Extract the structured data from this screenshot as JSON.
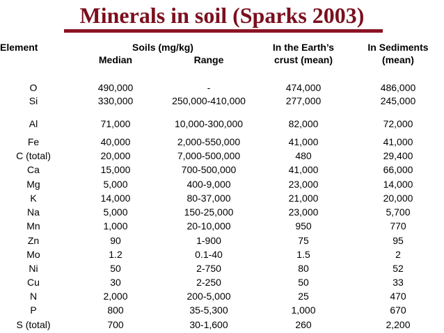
{
  "title": "Minerals in soil (Sparks 2003)",
  "colors": {
    "title": "#7b0f1e",
    "rule": "#8a1424",
    "text": "#000000",
    "background": "#ffffff"
  },
  "headers": {
    "element": "Element",
    "soils": "Soils (mg/kg)",
    "median": "Median",
    "range": "Range",
    "crust_line1": "In the Earth’s",
    "crust_line2": "crust (mean)",
    "sediments_line1": "In Sediments",
    "sediments_line2": "(mean)"
  },
  "rows": [
    {
      "element": "O",
      "median": "490,000",
      "range": "-",
      "crust": "474,000",
      "sediments": "486,000"
    },
    {
      "element": "Si",
      "median": "330,000",
      "range": "250,000-410,000",
      "crust": "277,000",
      "sediments": "245,000"
    },
    {
      "element": "Al",
      "median": "71,000",
      "range": "10,000-300,000",
      "crust": "82,000",
      "sediments": "72,000"
    },
    {
      "element": "Fe",
      "median": "40,000",
      "range": "2,000-550,000",
      "crust": "41,000",
      "sediments": "41,000"
    },
    {
      "element": "C (total)",
      "median": "20,000",
      "range": "7,000-500,000",
      "crust": "480",
      "sediments": "29,400"
    },
    {
      "element": "Ca",
      "median": "15,000",
      "range": "700-500,000",
      "crust": "41,000",
      "sediments": "66,000"
    },
    {
      "element": "Mg",
      "median": "5,000",
      "range": "400-9,000",
      "crust": "23,000",
      "sediments": "14,000"
    },
    {
      "element": "K",
      "median": "14,000",
      "range": "80-37,000",
      "crust": "21,000",
      "sediments": "20,000"
    },
    {
      "element": "Na",
      "median": "5,000",
      "range": "150-25,000",
      "crust": "23,000",
      "sediments": "5,700"
    },
    {
      "element": "Mn",
      "median": "1,000",
      "range": "20-10,000",
      "crust": "950",
      "sediments": "770"
    },
    {
      "element": "Zn",
      "median": "90",
      "range": "1-900",
      "crust": "75",
      "sediments": "95"
    },
    {
      "element": "Mo",
      "median": "1.2",
      "range": "0.1-40",
      "crust": "1.5",
      "sediments": "2"
    },
    {
      "element": "Ni",
      "median": "50",
      "range": "2-750",
      "crust": "80",
      "sediments": "52"
    },
    {
      "element": "Cu",
      "median": "30",
      "range": "2-250",
      "crust": "50",
      "sediments": "33"
    },
    {
      "element": "N",
      "median": "2,000",
      "range": "200-5,000",
      "crust": "25",
      "sediments": "470"
    },
    {
      "element": "P",
      "median": "800",
      "range": "35-5,300",
      "crust": "1,000",
      "sediments": "670"
    },
    {
      "element": "S (total)",
      "median": "700",
      "range": "30-1,600",
      "crust": "260",
      "sediments": "2,200"
    }
  ]
}
